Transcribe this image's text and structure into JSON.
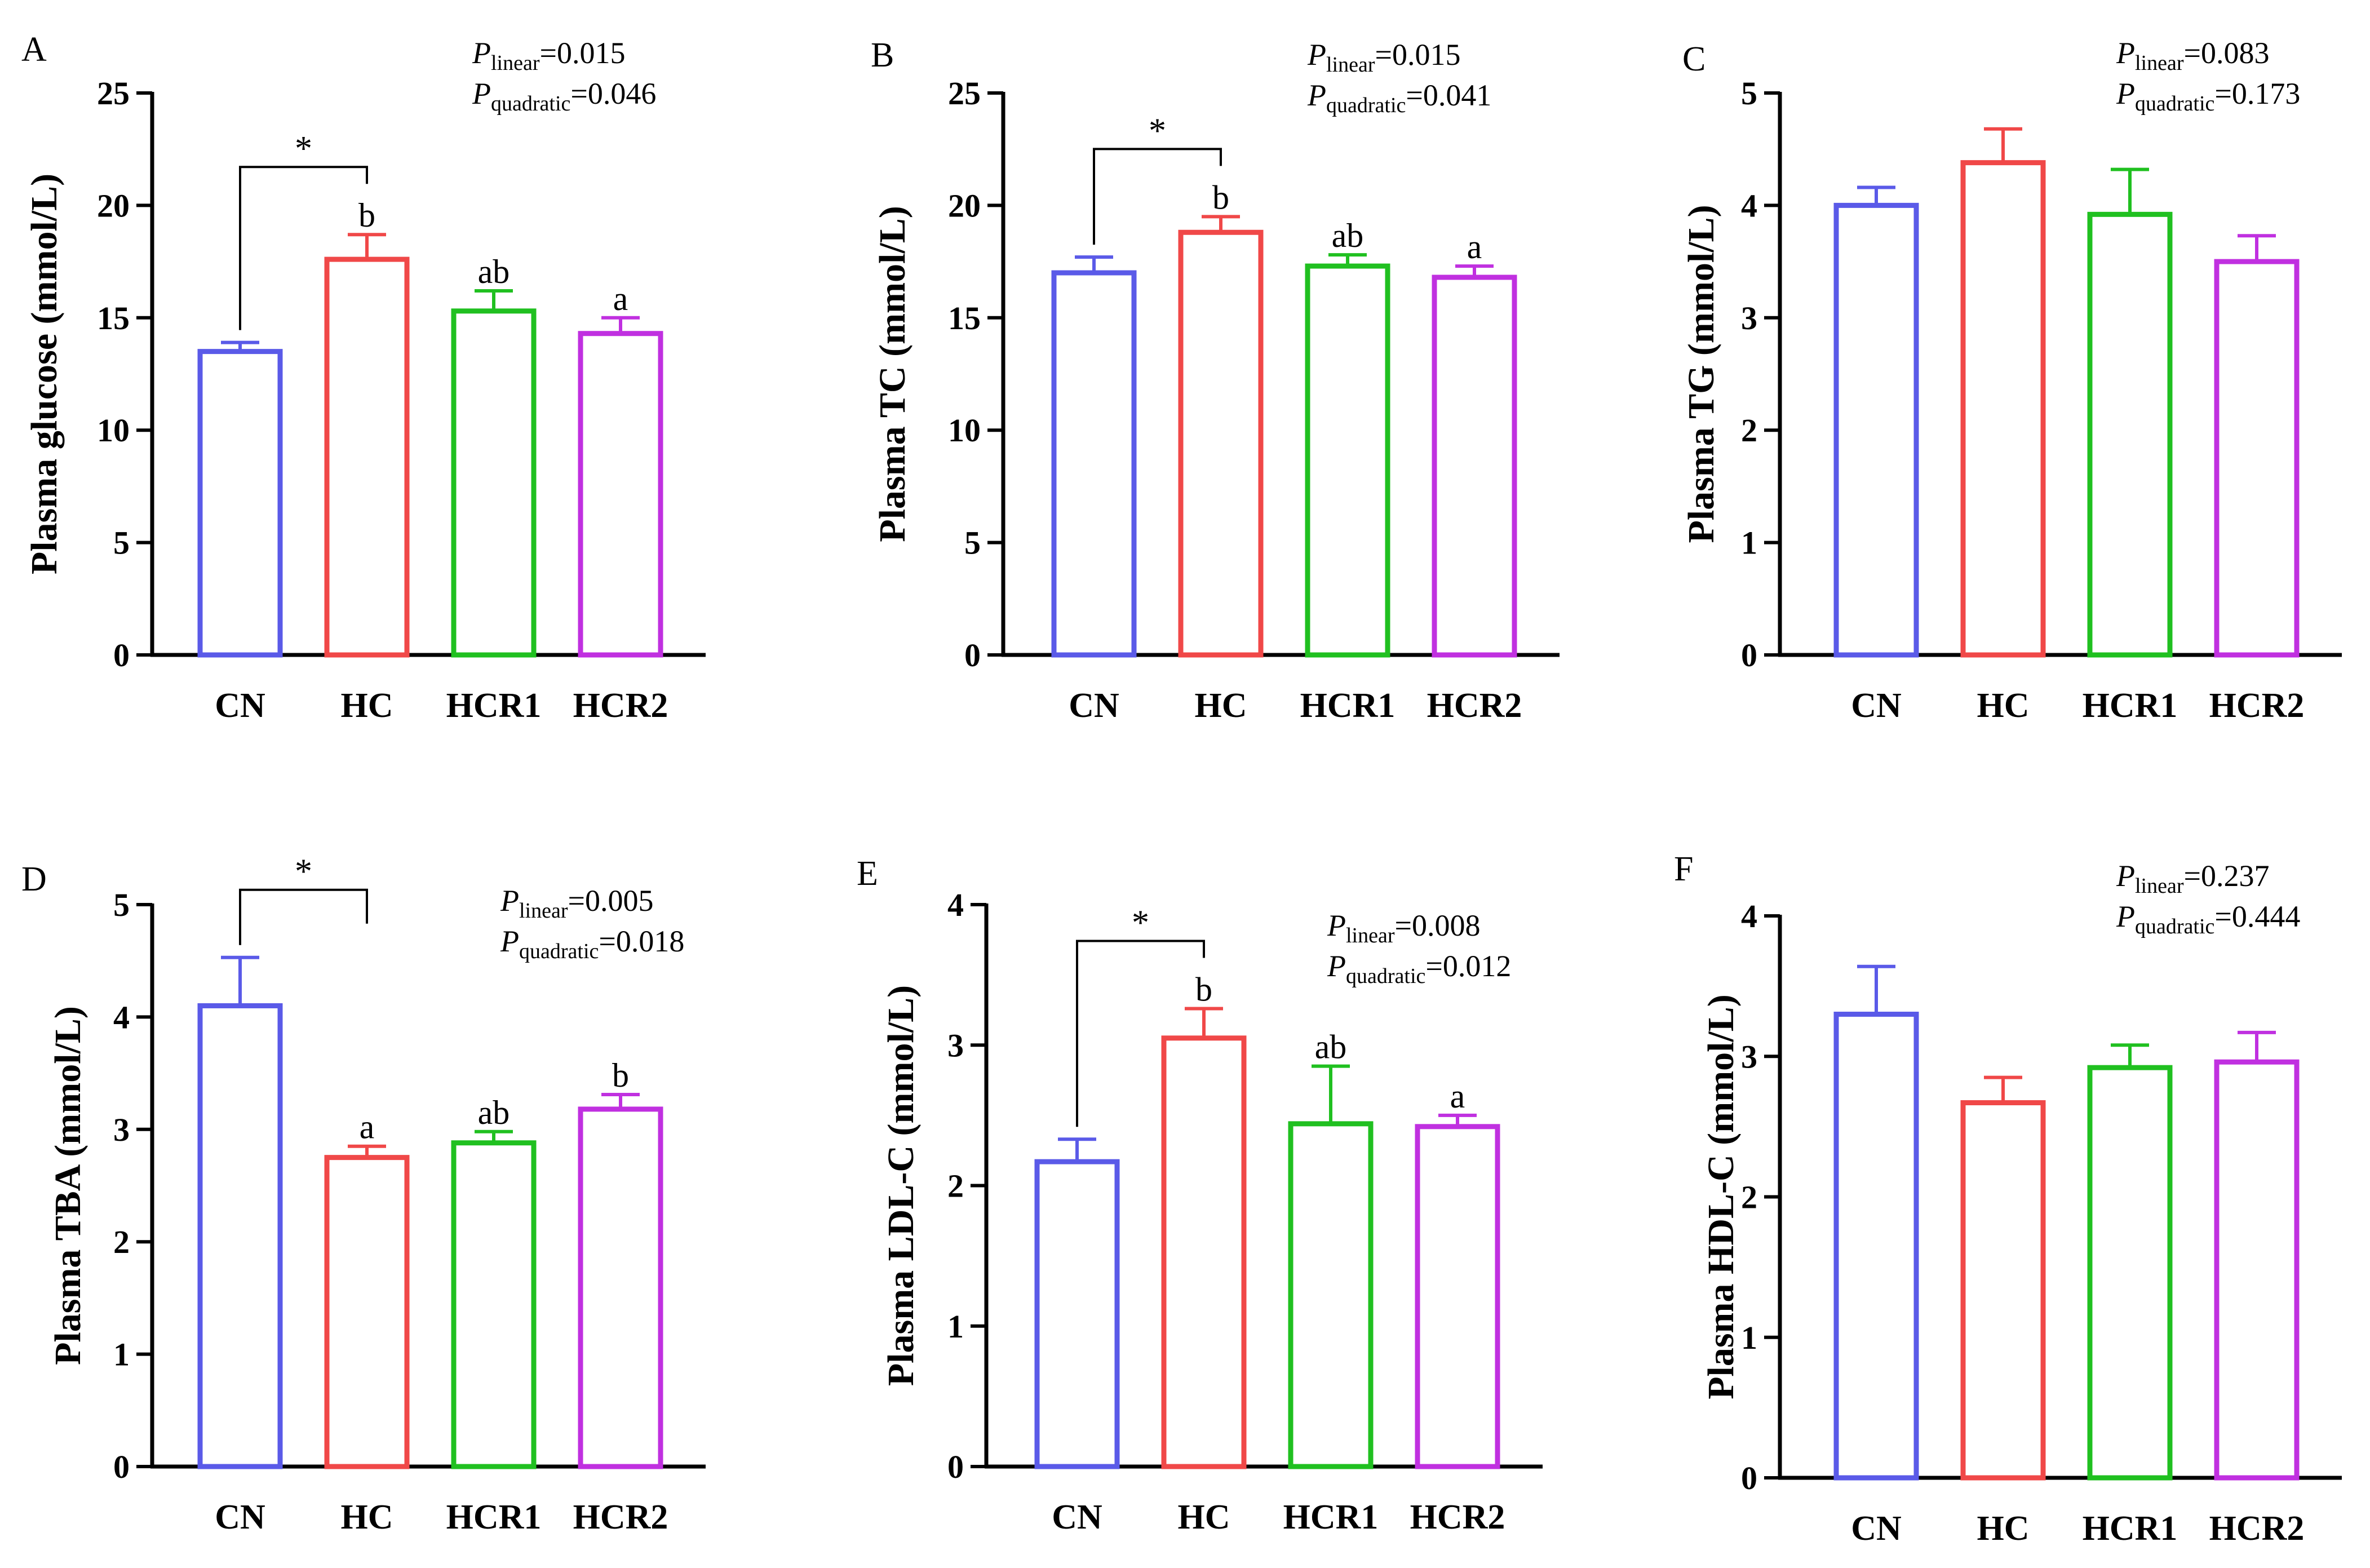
{
  "chart_data": [
    {
      "type": "bar",
      "panel": "A",
      "ylabel": "Plasma glucose (mmol/L)",
      "ylim": [
        0,
        25
      ],
      "yticks": [
        0,
        5,
        10,
        15,
        20,
        25
      ],
      "categories": [
        "CN",
        "HC",
        "HCR1",
        "HCR2"
      ],
      "values": [
        13.5,
        17.6,
        15.3,
        14.3
      ],
      "errors": [
        0.4,
        1.1,
        0.9,
        0.7
      ],
      "colors": [
        "#5a5ae8",
        "#f04848",
        "#20c020",
        "#c030e0"
      ],
      "letters": [
        "",
        "b",
        "ab",
        "a"
      ],
      "bracket": {
        "from": 0,
        "to": 1,
        "label": "*"
      },
      "p_linear": "=0.015",
      "p_quadratic": "=0.046"
    },
    {
      "type": "bar",
      "panel": "B",
      "ylabel": "Plasma TC (mmol/L)",
      "ylim": [
        0,
        25
      ],
      "yticks": [
        0,
        5,
        10,
        15,
        20,
        25
      ],
      "categories": [
        "CN",
        "HC",
        "HCR1",
        "HCR2"
      ],
      "values": [
        17.0,
        18.8,
        17.3,
        16.8
      ],
      "errors": [
        0.7,
        0.7,
        0.5,
        0.5
      ],
      "colors": [
        "#5a5ae8",
        "#f04848",
        "#20c020",
        "#c030e0"
      ],
      "letters": [
        "",
        "b",
        "ab",
        "a"
      ],
      "bracket": {
        "from": 0,
        "to": 1,
        "label": "*"
      },
      "p_linear": "=0.015",
      "p_quadratic": "=0.041"
    },
    {
      "type": "bar",
      "panel": "C",
      "ylabel": "Plasma TG (mmol/L)",
      "ylim": [
        0,
        5
      ],
      "yticks": [
        0,
        1,
        2,
        3,
        4,
        5
      ],
      "categories": [
        "CN",
        "HC",
        "HCR1",
        "HCR2"
      ],
      "values": [
        4.0,
        4.38,
        3.92,
        3.5
      ],
      "errors": [
        0.16,
        0.3,
        0.4,
        0.23
      ],
      "colors": [
        "#5a5ae8",
        "#f04848",
        "#20c020",
        "#c030e0"
      ],
      "letters": [
        "",
        "",
        "",
        ""
      ],
      "bracket": null,
      "p_linear": "=0.083",
      "p_quadratic": "=0.173"
    },
    {
      "type": "bar",
      "panel": "D",
      "ylabel": "Plasma TBA (mmol/L)",
      "ylim": [
        0,
        5
      ],
      "yticks": [
        0,
        1,
        2,
        3,
        4,
        5
      ],
      "categories": [
        "CN",
        "HC",
        "HCR1",
        "HCR2"
      ],
      "values": [
        4.1,
        2.75,
        2.88,
        3.18
      ],
      "errors": [
        0.43,
        0.1,
        0.1,
        0.13
      ],
      "colors": [
        "#5a5ae8",
        "#f04848",
        "#20c020",
        "#c030e0"
      ],
      "letters": [
        "",
        "a",
        "ab",
        "b"
      ],
      "bracket": {
        "from": 0,
        "to": 1,
        "label": "*"
      },
      "p_linear": "=0.005",
      "p_quadratic": "=0.018"
    },
    {
      "type": "bar",
      "panel": "E",
      "ylabel": "Plasma LDL-C (mmol/L)",
      "ylim": [
        0,
        4
      ],
      "yticks": [
        0,
        1,
        2,
        3,
        4
      ],
      "categories": [
        "CN",
        "HC",
        "HCR1",
        "HCR2"
      ],
      "values": [
        2.17,
        3.05,
        2.44,
        2.42
      ],
      "errors": [
        0.16,
        0.21,
        0.41,
        0.08
      ],
      "colors": [
        "#5a5ae8",
        "#f04848",
        "#20c020",
        "#c030e0"
      ],
      "letters": [
        "",
        "b",
        "ab",
        "a"
      ],
      "bracket": {
        "from": 0,
        "to": 1,
        "label": "*"
      },
      "p_linear": "=0.008",
      "p_quadratic": "=0.012"
    },
    {
      "type": "bar",
      "panel": "F",
      "ylabel": "Plasma HDL-C (mmol/L)",
      "ylim": [
        0,
        4
      ],
      "yticks": [
        0,
        1,
        2,
        3,
        4
      ],
      "categories": [
        "CN",
        "HC",
        "HCR1",
        "HCR2"
      ],
      "values": [
        3.3,
        2.67,
        2.92,
        2.96
      ],
      "errors": [
        0.34,
        0.18,
        0.16,
        0.21
      ],
      "colors": [
        "#5a5ae8",
        "#f04848",
        "#20c020",
        "#c030e0"
      ],
      "letters": [
        "",
        "",
        "",
        ""
      ],
      "bracket": null,
      "p_linear": "=0.237",
      "p_quadratic": "=0.444"
    }
  ],
  "p_symbol": "P",
  "p_sub_linear": "linear",
  "p_sub_quadratic": "quadratic"
}
